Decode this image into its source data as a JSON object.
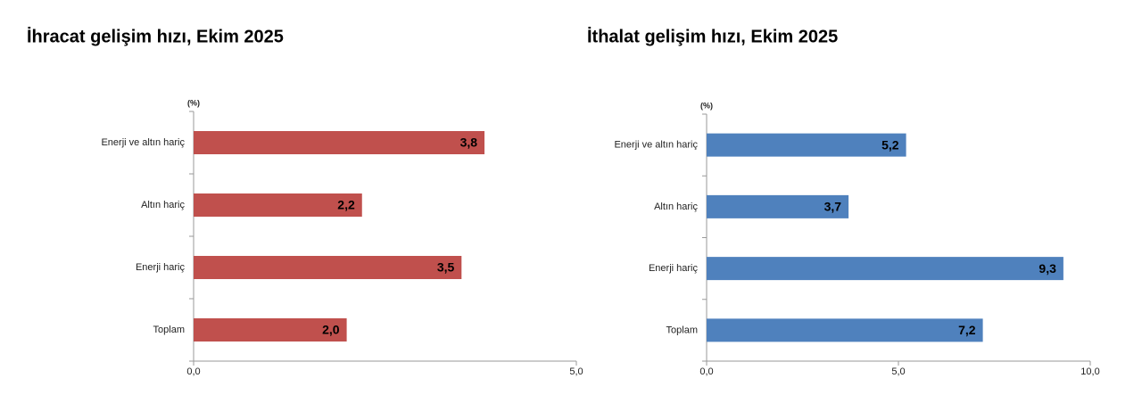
{
  "chart_data": [
    {
      "type": "bar",
      "orientation": "horizontal",
      "title": "İhracat gelişim hızı, Ekim 2025",
      "unit": "(%)",
      "categories": [
        "Enerji ve altın hariç",
        "Altın hariç",
        "Enerji hariç",
        "Toplam"
      ],
      "values": [
        3.8,
        2.2,
        3.5,
        2.0
      ],
      "value_labels": [
        "3,8",
        "2,2",
        "3,5",
        "2,0"
      ],
      "color": "#c0504d",
      "xlim": [
        0,
        5
      ],
      "xticks": [
        {
          "value": 0,
          "label": "0,0"
        },
        {
          "value": 5,
          "label": "5,0"
        }
      ]
    },
    {
      "type": "bar",
      "orientation": "horizontal",
      "title": "İthalat gelişim hızı, Ekim 2025",
      "unit": "(%)",
      "categories": [
        "Enerji ve altın hariç",
        "Altın hariç",
        "Enerji hariç",
        "Toplam"
      ],
      "values": [
        5.2,
        3.7,
        9.3,
        7.2
      ],
      "value_labels": [
        "5,2",
        "3,7",
        "9,3",
        "7,2"
      ],
      "color": "#4f81bd",
      "xlim": [
        0,
        10
      ],
      "xticks": [
        {
          "value": 0,
          "label": "0,0"
        },
        {
          "value": 5,
          "label": "5,0"
        },
        {
          "value": 10,
          "label": "10,0"
        }
      ]
    }
  ]
}
